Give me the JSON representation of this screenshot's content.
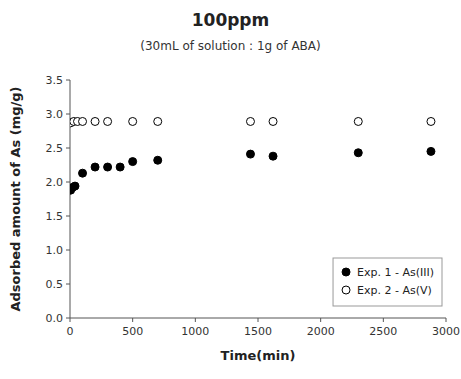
{
  "chart_data": {
    "type": "scatter",
    "title": "100ppm",
    "subtitle": "(30mL of solution : 1g of ABA)",
    "xlabel": "Time(min)",
    "ylabel": "Adsorbed amount of As (mg/g)",
    "xlim": [
      0,
      3000
    ],
    "ylim": [
      0.0,
      3.5
    ],
    "xticks": [
      0,
      500,
      1000,
      1500,
      2000,
      2500,
      3000
    ],
    "yticks": [
      {
        "value": 0.0,
        "label": "0.0"
      },
      0.5,
      {
        "value": 1.0,
        "label": "1.0"
      },
      1.5,
      {
        "value": 2.0,
        "label": "2.0"
      },
      2.5,
      {
        "value": 3.0,
        "label": "3.0"
      },
      3.5
    ],
    "grid": false,
    "legend": "lower right",
    "series": [
      {
        "name": "Exp. 1 - As(III)",
        "color": "black",
        "marker": "circle",
        "x": [
          5,
          20,
          40,
          100,
          200,
          300,
          400,
          500,
          700,
          1440,
          1620,
          2300,
          2880
        ],
        "values": [
          1.88,
          1.92,
          1.94,
          2.13,
          2.22,
          2.22,
          2.22,
          2.3,
          2.32,
          2.41,
          2.38,
          2.43,
          2.45
        ]
      },
      {
        "name": "Exp. 2 - As(V)",
        "color": "black",
        "marker": "open-circle",
        "x": [
          5,
          30,
          60,
          100,
          200,
          300,
          500,
          700,
          1440,
          1620,
          2300,
          2880
        ],
        "values": [
          2.87,
          2.89,
          2.89,
          2.89,
          2.89,
          2.89,
          2.89,
          2.89,
          2.89,
          2.89,
          2.89,
          2.89
        ]
      }
    ]
  }
}
